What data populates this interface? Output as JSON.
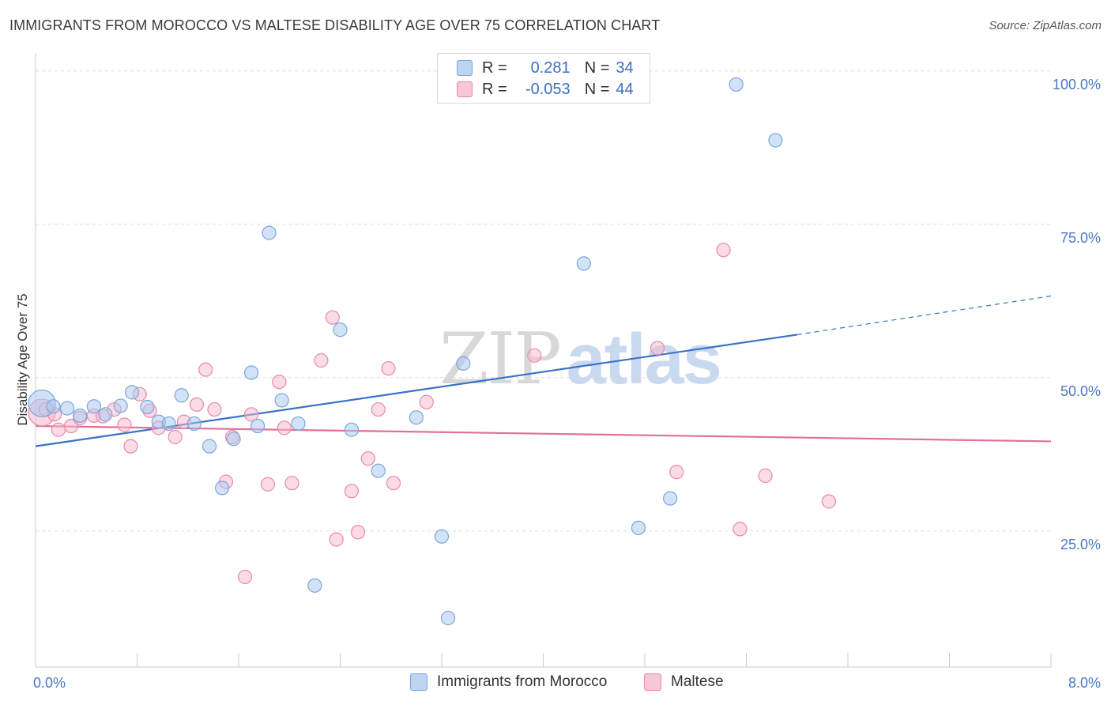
{
  "title": "IMMIGRANTS FROM MOROCCO VS MALTESE DISABILITY AGE OVER 75 CORRELATION CHART",
  "source": "Source: ZipAtlas.com",
  "watermark": {
    "part1": "ZIP",
    "part2": "atlas"
  },
  "legend": {
    "rows": [
      {
        "r_label": "R =",
        "r_value": "0.281",
        "n_label": "N =",
        "n_value": "34"
      },
      {
        "r_label": "R =",
        "r_value": "-0.053",
        "n_label": "N =",
        "n_value": "44"
      }
    ]
  },
  "colors": {
    "blue_fill": "#a8c8f0",
    "blue_stroke": "#7aa6dc",
    "blue_line": "#3a72c8",
    "pink_fill": "#f7b8cc",
    "pink_stroke": "#e88aa8",
    "pink_line": "#e2709a",
    "grid": "#dddddd",
    "axis_text": "#4a78c2"
  },
  "chart_data": {
    "type": "scatter",
    "xlabel": "",
    "ylabel": "Disability Age Over 75",
    "xlim": [
      0,
      8
    ],
    "ylim": [
      5,
      105
    ],
    "x_tick_labels": [
      "0.0%",
      "8.0%"
    ],
    "y_ticks": [
      25,
      50,
      75,
      100
    ],
    "y_tick_labels": [
      "25.0%",
      "50.0%",
      "75.0%",
      "100.0%"
    ],
    "grid": "horizontal dashed",
    "legend_position": "top-center",
    "series": [
      {
        "name": "Immigrants from Morocco",
        "r": 0.281,
        "n": 34,
        "trend": {
          "x": [
            0,
            6.0
          ],
          "y": [
            41.0,
            59.2
          ],
          "dashed_to": [
            8.0,
            65.5
          ]
        },
        "points": [
          {
            "x": 0.05,
            "y": 48.0,
            "big": true
          },
          {
            "x": 0.14,
            "y": 47.5
          },
          {
            "x": 0.25,
            "y": 47.2
          },
          {
            "x": 0.35,
            "y": 46.0
          },
          {
            "x": 0.46,
            "y": 47.5
          },
          {
            "x": 0.55,
            "y": 46.2
          },
          {
            "x": 0.67,
            "y": 47.6
          },
          {
            "x": 0.76,
            "y": 49.8
          },
          {
            "x": 0.88,
            "y": 47.4
          },
          {
            "x": 0.97,
            "y": 45.0
          },
          {
            "x": 1.05,
            "y": 44.7
          },
          {
            "x": 1.15,
            "y": 49.3
          },
          {
            "x": 1.25,
            "y": 44.7
          },
          {
            "x": 1.37,
            "y": 41.0
          },
          {
            "x": 1.47,
            "y": 34.2
          },
          {
            "x": 1.56,
            "y": 42.2
          },
          {
            "x": 1.7,
            "y": 53.0
          },
          {
            "x": 1.75,
            "y": 44.3
          },
          {
            "x": 1.84,
            "y": 75.8
          },
          {
            "x": 1.94,
            "y": 48.5
          },
          {
            "x": 2.07,
            "y": 44.7
          },
          {
            "x": 2.2,
            "y": 18.3
          },
          {
            "x": 2.4,
            "y": 60.0
          },
          {
            "x": 2.49,
            "y": 43.7
          },
          {
            "x": 2.7,
            "y": 37.0
          },
          {
            "x": 3.0,
            "y": 45.7
          },
          {
            "x": 3.2,
            "y": 26.3
          },
          {
            "x": 3.25,
            "y": 13.0
          },
          {
            "x": 3.37,
            "y": 54.5
          },
          {
            "x": 4.32,
            "y": 70.8
          },
          {
            "x": 4.75,
            "y": 27.7
          },
          {
            "x": 5.0,
            "y": 32.5
          },
          {
            "x": 5.52,
            "y": 100.0
          },
          {
            "x": 5.83,
            "y": 90.9
          }
        ]
      },
      {
        "name": "Maltese",
        "r": -0.053,
        "n": 44,
        "trend": {
          "x": [
            0,
            8.0
          ],
          "y": [
            44.3,
            41.8
          ]
        },
        "points": [
          {
            "x": 0.05,
            "y": 46.5,
            "big": true
          },
          {
            "x": 0.18,
            "y": 43.7
          },
          {
            "x": 0.28,
            "y": 44.3
          },
          {
            "x": 0.35,
            "y": 45.6
          },
          {
            "x": 0.46,
            "y": 46.0
          },
          {
            "x": 0.53,
            "y": 45.9
          },
          {
            "x": 0.62,
            "y": 47.0
          },
          {
            "x": 0.7,
            "y": 44.5
          },
          {
            "x": 0.75,
            "y": 41.0
          },
          {
            "x": 0.82,
            "y": 49.5
          },
          {
            "x": 0.9,
            "y": 46.8
          },
          {
            "x": 0.97,
            "y": 44.0
          },
          {
            "x": 1.1,
            "y": 42.5
          },
          {
            "x": 1.17,
            "y": 45.0
          },
          {
            "x": 1.27,
            "y": 47.8
          },
          {
            "x": 1.34,
            "y": 53.5
          },
          {
            "x": 1.41,
            "y": 47.0
          },
          {
            "x": 1.5,
            "y": 35.2
          },
          {
            "x": 1.55,
            "y": 42.5
          },
          {
            "x": 1.65,
            "y": 19.7
          },
          {
            "x": 1.7,
            "y": 46.2
          },
          {
            "x": 1.83,
            "y": 34.8
          },
          {
            "x": 1.92,
            "y": 51.5
          },
          {
            "x": 1.96,
            "y": 44.0
          },
          {
            "x": 2.02,
            "y": 35.0
          },
          {
            "x": 2.25,
            "y": 55.0
          },
          {
            "x": 2.34,
            "y": 62.0
          },
          {
            "x": 2.37,
            "y": 25.8
          },
          {
            "x": 2.49,
            "y": 33.7
          },
          {
            "x": 2.54,
            "y": 27.0
          },
          {
            "x": 2.62,
            "y": 39.0
          },
          {
            "x": 2.7,
            "y": 47.0
          },
          {
            "x": 2.78,
            "y": 53.7
          },
          {
            "x": 2.82,
            "y": 35.0
          },
          {
            "x": 3.08,
            "y": 48.2
          },
          {
            "x": 3.93,
            "y": 55.8
          },
          {
            "x": 4.9,
            "y": 57.0
          },
          {
            "x": 5.05,
            "y": 36.8
          },
          {
            "x": 5.42,
            "y": 73.0
          },
          {
            "x": 5.55,
            "y": 27.5
          },
          {
            "x": 5.75,
            "y": 36.2
          },
          {
            "x": 6.25,
            "y": 32.0
          },
          {
            "x": 0.08,
            "y": 47.0
          },
          {
            "x": 0.15,
            "y": 46.2
          }
        ]
      }
    ]
  }
}
